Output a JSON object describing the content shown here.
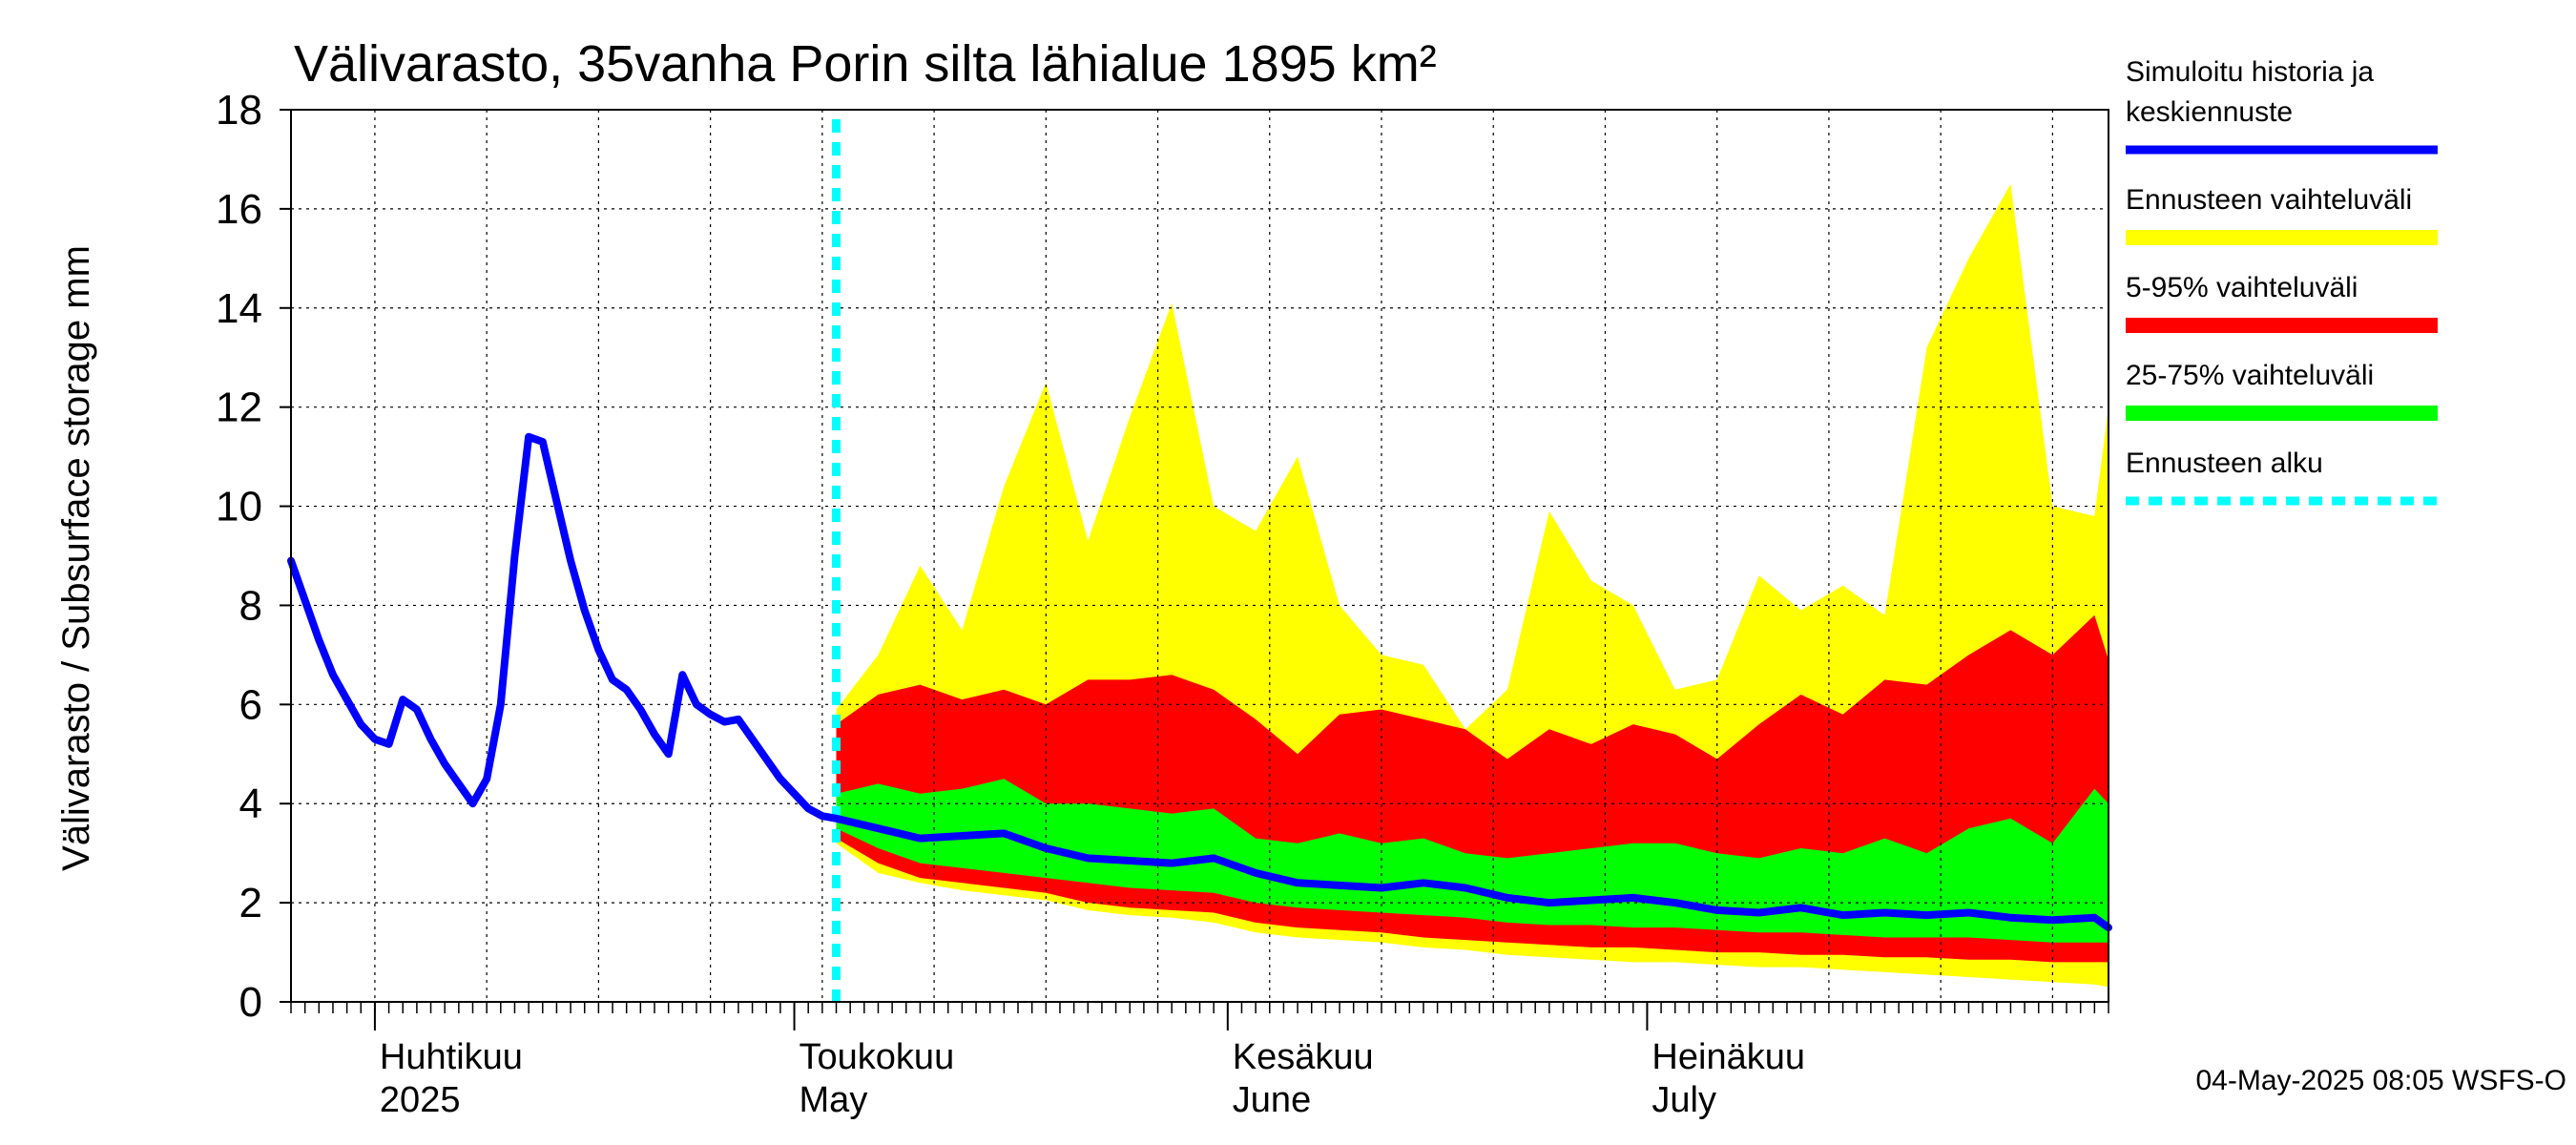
{
  "chart_data": {
    "type": "area",
    "title": "Välivarasto, 35vanha Porin silta lähialue 1895 km²",
    "ylabel": "Välivarasto / Subsurface storage  mm",
    "ylim": [
      0,
      18
    ],
    "yticks": [
      "0",
      "2",
      "4",
      "6",
      "8",
      "10",
      "12",
      "14",
      "16",
      "18"
    ],
    "xlim": [
      "2025-03-26",
      "2025-08-03"
    ],
    "month_labels": [
      {
        "date": "2025-04-01",
        "fi": "Huhtikuu",
        "en": "2025"
      },
      {
        "date": "2025-05-01",
        "fi": "Toukokuu",
        "en": "May"
      },
      {
        "date": "2025-06-01",
        "fi": "Kesäkuu",
        "en": "June"
      },
      {
        "date": "2025-07-01",
        "fi": "Heinäkuu",
        "en": "July"
      }
    ],
    "grid": true,
    "legend_position": "right",
    "forecast_start": "2025-05-04",
    "stamp": "04-May-2025 08:05 WSFS-O",
    "legend": [
      {
        "label": "Simuloitu historia ja keskiennuste",
        "lines": [
          "Simuloitu historia ja",
          "keskiennuste"
        ],
        "color": "#0000ff",
        "kind": "line"
      },
      {
        "label": "Ennusteen vaihteluväli",
        "lines": [
          "Ennusteen vaihteluväli"
        ],
        "color": "#ffff00",
        "kind": "band"
      },
      {
        "label": "5-95% vaihteluväli",
        "lines": [
          "5-95% vaihteluväli"
        ],
        "color": "#ff0000",
        "kind": "band"
      },
      {
        "label": "25-75% vaihteluväli",
        "lines": [
          "25-75% vaihteluväli"
        ],
        "color": "#00ff00",
        "kind": "band"
      },
      {
        "label": "Ennusteen alku",
        "lines": [
          "Ennusteen alku"
        ],
        "color": "#00ffff",
        "kind": "dashed"
      }
    ],
    "history": {
      "name": "Simuloitu historia ja keskiennuste",
      "x": [
        "2025-03-26",
        "2025-03-27",
        "2025-03-28",
        "2025-03-29",
        "2025-03-30",
        "2025-03-31",
        "2025-04-01",
        "2025-04-02",
        "2025-04-03",
        "2025-04-04",
        "2025-04-05",
        "2025-04-06",
        "2025-04-07",
        "2025-04-08",
        "2025-04-09",
        "2025-04-10",
        "2025-04-11",
        "2025-04-12",
        "2025-04-13",
        "2025-04-14",
        "2025-04-15",
        "2025-04-16",
        "2025-04-17",
        "2025-04-18",
        "2025-04-19",
        "2025-04-20",
        "2025-04-21",
        "2025-04-22",
        "2025-04-23",
        "2025-04-24",
        "2025-04-25",
        "2025-04-26",
        "2025-04-27",
        "2025-04-28",
        "2025-04-29",
        "2025-04-30",
        "2025-05-01",
        "2025-05-02",
        "2025-05-03",
        "2025-05-04"
      ],
      "y": [
        8.9,
        8.1,
        7.3,
        6.6,
        6.1,
        5.6,
        5.3,
        5.2,
        6.1,
        5.9,
        5.3,
        4.8,
        4.4,
        4.0,
        4.5,
        6.0,
        9.0,
        11.4,
        11.3,
        10.1,
        8.9,
        7.9,
        7.1,
        6.5,
        6.3,
        5.9,
        5.4,
        5.0,
        6.6,
        6.0,
        5.8,
        5.65,
        5.7,
        5.3,
        4.9,
        4.5,
        4.2,
        3.9,
        3.75,
        3.7
      ]
    },
    "forecast": {
      "x": [
        "2025-05-04",
        "2025-05-07",
        "2025-05-10",
        "2025-05-13",
        "2025-05-16",
        "2025-05-19",
        "2025-05-22",
        "2025-05-25",
        "2025-05-28",
        "2025-05-31",
        "2025-06-03",
        "2025-06-06",
        "2025-06-09",
        "2025-06-12",
        "2025-06-15",
        "2025-06-18",
        "2025-06-21",
        "2025-06-24",
        "2025-06-27",
        "2025-06-30",
        "2025-07-03",
        "2025-07-06",
        "2025-07-09",
        "2025-07-12",
        "2025-07-15",
        "2025-07-18",
        "2025-07-21",
        "2025-07-24",
        "2025-07-27",
        "2025-07-30",
        "2025-08-02",
        "2025-08-03"
      ],
      "median": [
        3.7,
        3.5,
        3.3,
        3.35,
        3.4,
        3.1,
        2.9,
        2.85,
        2.8,
        2.9,
        2.6,
        2.4,
        2.35,
        2.3,
        2.4,
        2.3,
        2.1,
        2.0,
        2.05,
        2.1,
        2.0,
        1.85,
        1.8,
        1.9,
        1.75,
        1.8,
        1.75,
        1.8,
        1.7,
        1.65,
        1.7,
        1.5
      ],
      "p25": [
        3.5,
        3.1,
        2.8,
        2.7,
        2.6,
        2.5,
        2.4,
        2.3,
        2.25,
        2.2,
        2.0,
        1.9,
        1.85,
        1.8,
        1.75,
        1.7,
        1.6,
        1.55,
        1.55,
        1.5,
        1.5,
        1.45,
        1.4,
        1.4,
        1.35,
        1.3,
        1.3,
        1.3,
        1.25,
        1.2,
        1.2,
        1.2
      ],
      "p75": [
        4.2,
        4.4,
        4.2,
        4.3,
        4.5,
        4.0,
        4.0,
        3.9,
        3.8,
        3.9,
        3.3,
        3.2,
        3.4,
        3.2,
        3.3,
        3.0,
        2.9,
        3.0,
        3.1,
        3.2,
        3.2,
        3.0,
        2.9,
        3.1,
        3.0,
        3.3,
        3.0,
        3.5,
        3.7,
        3.2,
        4.3,
        4.0
      ],
      "p05": [
        3.3,
        2.8,
        2.5,
        2.4,
        2.3,
        2.2,
        2.0,
        1.9,
        1.85,
        1.8,
        1.6,
        1.5,
        1.45,
        1.4,
        1.3,
        1.25,
        1.2,
        1.15,
        1.1,
        1.1,
        1.05,
        1.0,
        1.0,
        0.95,
        0.95,
        0.9,
        0.9,
        0.85,
        0.85,
        0.8,
        0.8,
        0.8
      ],
      "p95": [
        5.6,
        6.2,
        6.4,
        6.1,
        6.3,
        6.0,
        6.5,
        6.5,
        6.6,
        6.3,
        5.7,
        5.0,
        5.8,
        5.9,
        5.7,
        5.5,
        4.9,
        5.5,
        5.2,
        5.6,
        5.4,
        4.9,
        5.6,
        6.2,
        5.8,
        6.5,
        6.4,
        7.0,
        7.5,
        7.0,
        7.8,
        6.9
      ],
      "min": [
        3.2,
        2.6,
        2.4,
        2.25,
        2.15,
        2.05,
        1.85,
        1.75,
        1.7,
        1.6,
        1.4,
        1.3,
        1.25,
        1.2,
        1.1,
        1.05,
        0.95,
        0.9,
        0.85,
        0.8,
        0.8,
        0.75,
        0.7,
        0.7,
        0.65,
        0.6,
        0.55,
        0.5,
        0.45,
        0.4,
        0.35,
        0.3
      ],
      "max": [
        5.9,
        7.0,
        8.8,
        7.5,
        10.4,
        12.5,
        9.3,
        11.8,
        14.1,
        10.0,
        9.5,
        11.0,
        8.0,
        7.0,
        6.8,
        5.5,
        6.3,
        9.9,
        8.5,
        8.0,
        6.3,
        6.5,
        8.6,
        7.9,
        8.4,
        7.8,
        13.2,
        15.0,
        16.5,
        10.0,
        9.8,
        12.0
      ]
    }
  }
}
